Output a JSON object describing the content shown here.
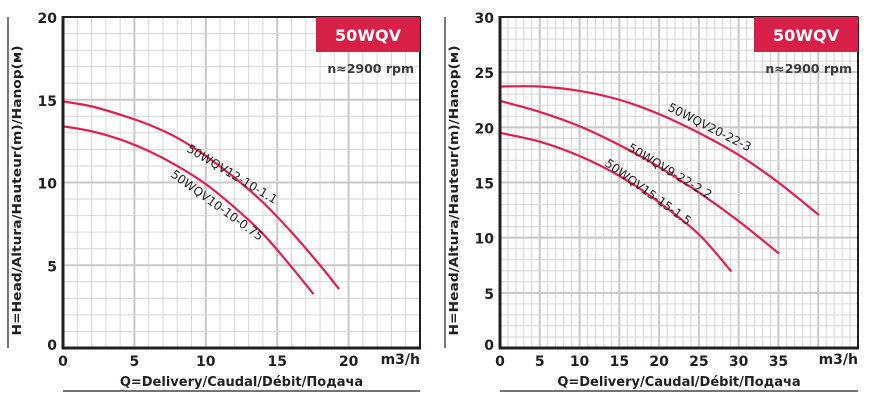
{
  "chart_data": [
    {
      "type": "line",
      "title": "50WQV",
      "subtitle": "n≈2900 rpm",
      "xlabel": "Q=Delivery/Caudal/Débit/Подача",
      "ylabel": "H=Head/Altura/Hauteur(m)/Hanop(м)",
      "x_unit": "m3/h",
      "xlim": [
        0,
        25
      ],
      "ylim": [
        0,
        20
      ],
      "x_ticks": [
        "0",
        "5",
        "10",
        "15",
        "20"
      ],
      "x_tick_values": [
        0,
        5,
        10,
        15,
        20
      ],
      "y_ticks": [
        "0",
        "5",
        "10",
        "15",
        "20"
      ],
      "y_tick_values": [
        0,
        5,
        10,
        15,
        20
      ],
      "grid": true,
      "series": [
        {
          "name": "50WQV12-10-1.1",
          "x": [
            0,
            2,
            4,
            6,
            8,
            10,
            12,
            14,
            16,
            18,
            19.3
          ],
          "y": [
            14.9,
            14.6,
            14.1,
            13.5,
            12.7,
            11.6,
            10.3,
            8.8,
            7.0,
            5.0,
            3.6
          ]
        },
        {
          "name": "50WQV10-10-0.75",
          "x": [
            0,
            2,
            4,
            6,
            8,
            10,
            12,
            14,
            16,
            17.5
          ],
          "y": [
            13.4,
            13.1,
            12.6,
            11.9,
            11.0,
            9.9,
            8.5,
            6.9,
            4.9,
            3.3
          ]
        }
      ]
    },
    {
      "type": "line",
      "title": "50WQV",
      "subtitle": "n≈2900 rpm",
      "xlabel": "Q=Delivery/Caudal/Débit/Подача",
      "ylabel": "H=Head/Altura/Hauteur(m)/Hanop(м)",
      "x_unit": "m3/h",
      "xlim": [
        0,
        45
      ],
      "ylim": [
        0,
        30
      ],
      "x_ticks": [
        "0",
        "5",
        "10",
        "15",
        "20",
        "25",
        "30",
        "35"
      ],
      "x_tick_values": [
        0,
        5,
        10,
        15,
        20,
        25,
        30,
        35
      ],
      "y_ticks": [
        "0",
        "5",
        "10",
        "15",
        "20",
        "25",
        "30"
      ],
      "y_tick_values": [
        0,
        5,
        10,
        15,
        20,
        25,
        30
      ],
      "grid": true,
      "series": [
        {
          "name": "50WQV20-22-3",
          "x": [
            0,
            5,
            10,
            15,
            20,
            25,
            30,
            35,
            40
          ],
          "y": [
            23.7,
            23.7,
            23.3,
            22.5,
            21.2,
            19.5,
            17.5,
            15.0,
            12.1
          ]
        },
        {
          "name": "50WQV9-22-2.2",
          "x": [
            0,
            5,
            10,
            15,
            20,
            25,
            30,
            35
          ],
          "y": [
            22.4,
            21.4,
            20.1,
            18.4,
            16.4,
            14.1,
            11.5,
            8.6
          ]
        },
        {
          "name": "50WQV15-15-1.5",
          "x": [
            0,
            5,
            10,
            15,
            20,
            25,
            29
          ],
          "y": [
            19.5,
            18.7,
            17.4,
            15.6,
            13.2,
            10.3,
            7.0
          ]
        }
      ]
    }
  ],
  "colors": {
    "curve": "#e0204f",
    "badge": "#d81f47",
    "badge_text": "#ffffff",
    "grid_minor": "#d6d6d6",
    "grid_major": "#c8c8c8",
    "axis": "#231f20",
    "text": "#231f20"
  }
}
